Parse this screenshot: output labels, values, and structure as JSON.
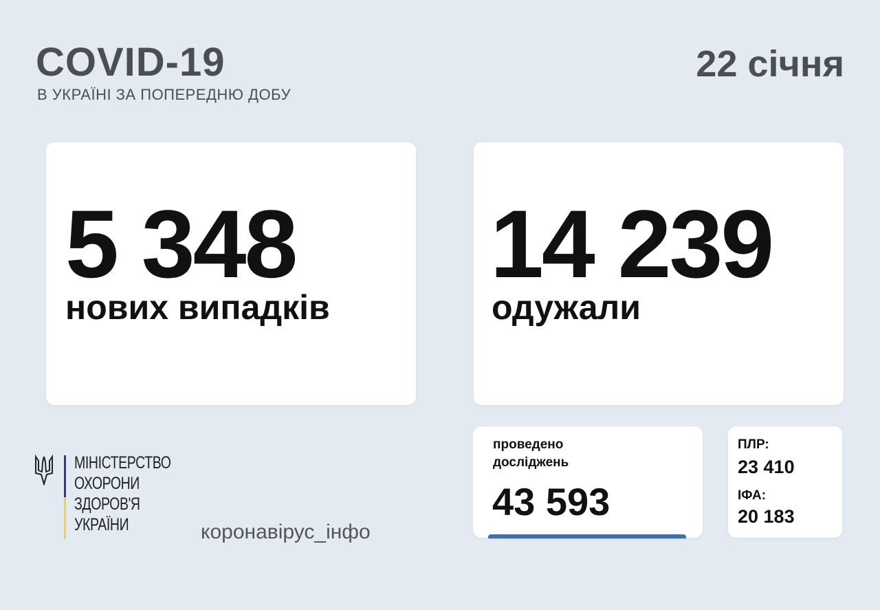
{
  "header": {
    "title": "COVID-19",
    "subtitle": "В УКРАЇНІ ЗА ПОПЕРЕДНЮ ДОБУ",
    "date": "22 січня"
  },
  "cases": {
    "value": "5 348",
    "label": "нових випадків"
  },
  "recovered": {
    "value": "14 239",
    "label": "одужали"
  },
  "tests": {
    "label_line1": "проведено",
    "label_line2": "досліджень",
    "value": "43 593",
    "accent": "#3e6fb5"
  },
  "test_types": {
    "pcr_label": "ПЛР:",
    "pcr_value": "23 410",
    "ifa_label": "ІФА:",
    "ifa_value": "20 183"
  },
  "footer": {
    "ministry_lines": [
      "МІНІСТЕРСТВО",
      "ОХОРОНИ",
      "ЗДОРОВ'Я",
      "УКРАЇНИ"
    ],
    "site": "коронавірус_інфо",
    "logo_icon": "trident-icon",
    "flag_colors": [
      "#2e3c8f",
      "#f4d148"
    ]
  }
}
